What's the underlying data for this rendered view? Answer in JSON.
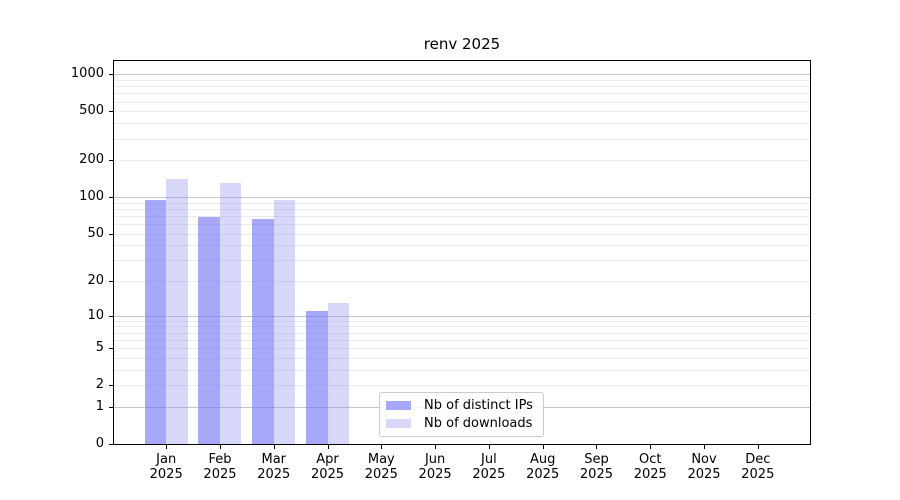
{
  "chart_data": {
    "type": "bar",
    "title": "renv 2025",
    "categories": [
      "Jan",
      "Feb",
      "Mar",
      "Apr",
      "May",
      "Jun",
      "Jul",
      "Aug",
      "Sep",
      "Oct",
      "Nov",
      "Dec"
    ],
    "category_year": "2025",
    "series": [
      {
        "name": "Nb of distinct IPs",
        "color": "#7474F7A0",
        "display_color": "#A8A8FA",
        "values": [
          94,
          68,
          66,
          11,
          null,
          null,
          null,
          null,
          null,
          null,
          null,
          null
        ]
      },
      {
        "name": "Nb of downloads",
        "color": "#8F8FF159",
        "display_color": "#D8D8FA",
        "values": [
          140,
          130,
          95,
          13,
          null,
          null,
          null,
          null,
          null,
          null,
          null,
          null
        ]
      }
    ],
    "xlabel": "",
    "ylabel": "",
    "y_scale": "log1p",
    "ylim": [
      0,
      1280
    ],
    "y_ticks": [
      0,
      1,
      2,
      5,
      10,
      20,
      50,
      100,
      200,
      500,
      1000
    ],
    "y_major_gridlines": [
      1,
      10,
      100,
      1000
    ],
    "y_minor_gridlines": [
      2,
      3,
      4,
      5,
      6,
      7,
      8,
      9,
      20,
      30,
      40,
      50,
      60,
      70,
      80,
      90,
      200,
      300,
      400,
      500,
      600,
      700,
      800,
      900
    ],
    "grid": "on",
    "legend_position": "lower-center",
    "colors": {
      "major_grid": "#c6c6c6",
      "minor_grid": "#ebebeb",
      "spine": "#000000",
      "text": "#000000",
      "legend_border": "#cccccc"
    }
  }
}
